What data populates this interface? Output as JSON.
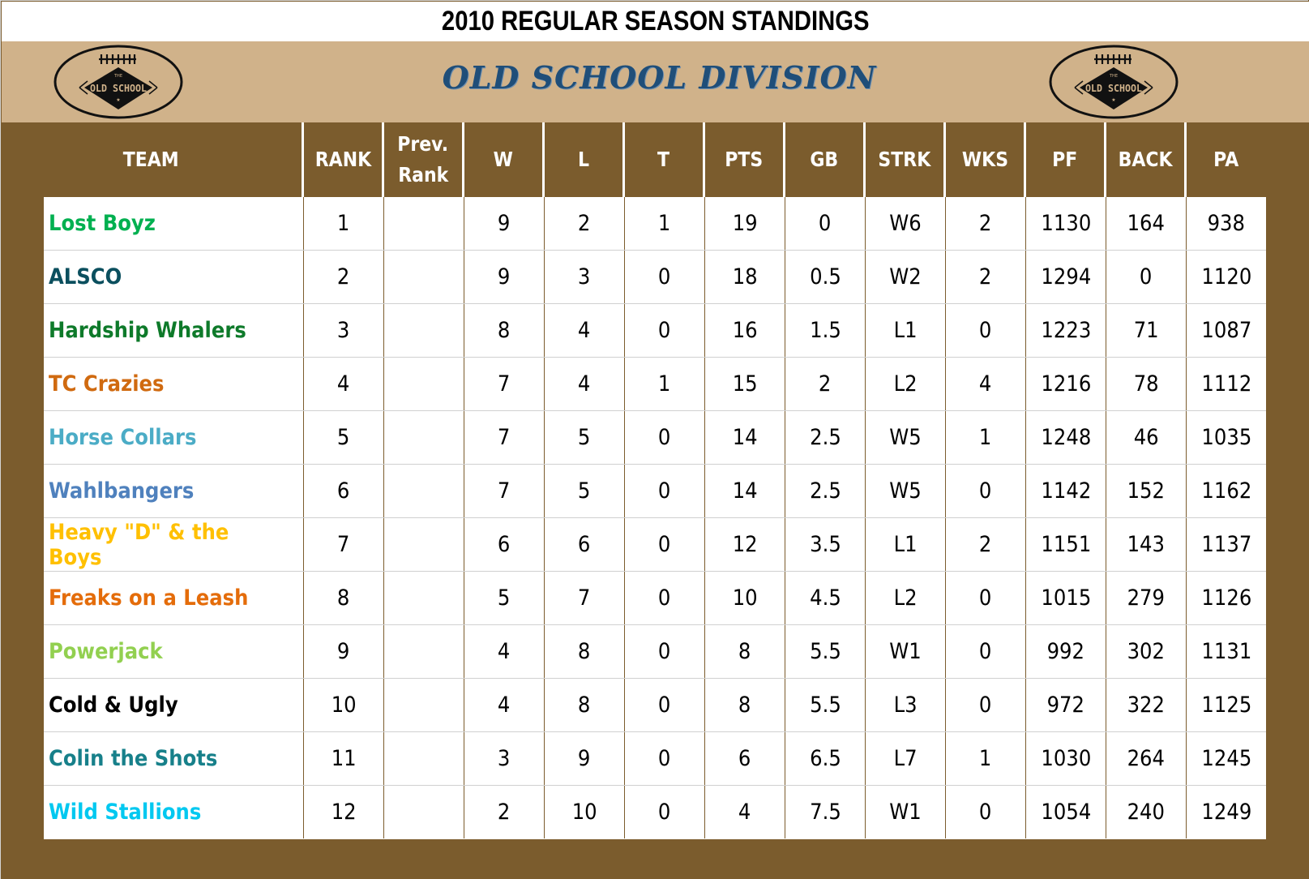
{
  "title": "2010 REGULAR SEASON STANDINGS",
  "division": {
    "name": "OLD SCHOOL DIVISION",
    "logo_text_top": "THE",
    "logo_text_main": "OLD SCHOOL"
  },
  "colors": {
    "brown": "#7B5C2D",
    "tan": "#D0B28A",
    "division_title": "#1F4E79"
  },
  "columns": {
    "team": "TEAM",
    "rank": "RANK",
    "prev_rank_line1": "Prev.",
    "prev_rank_line2": "Rank",
    "w": "W",
    "l": "L",
    "t": "T",
    "pts": "PTS",
    "gb": "GB",
    "strk": "STRK",
    "wks": "WKS",
    "pf": "PF",
    "back": "BACK",
    "pa": "PA"
  },
  "rows": [
    {
      "team": "Lost Boyz",
      "color": "#00B050",
      "rank": "1",
      "prev_rank": "",
      "w": "9",
      "l": "2",
      "t": "1",
      "pts": "19",
      "gb": "0",
      "strk": "W6",
      "wks": "2",
      "pf": "1130",
      "back": "164",
      "pa": "938"
    },
    {
      "team": "ALSCO",
      "color": "#0B4F5E",
      "rank": "2",
      "prev_rank": "",
      "w": "9",
      "l": "3",
      "t": "0",
      "pts": "18",
      "gb": "0.5",
      "strk": "W2",
      "wks": "2",
      "pf": "1294",
      "back": "0",
      "pa": "1120"
    },
    {
      "team": "Hardship Whalers",
      "color": "#0E7A2A",
      "rank": "3",
      "prev_rank": "",
      "w": "8",
      "l": "4",
      "t": "0",
      "pts": "16",
      "gb": "1.5",
      "strk": "L1",
      "wks": "0",
      "pf": "1223",
      "back": "71",
      "pa": "1087"
    },
    {
      "team": "TC Crazies",
      "color": "#D06A10",
      "rank": "4",
      "prev_rank": "",
      "w": "7",
      "l": "4",
      "t": "1",
      "pts": "15",
      "gb": "2",
      "strk": "L2",
      "wks": "4",
      "pf": "1216",
      "back": "78",
      "pa": "1112"
    },
    {
      "team": "Horse Collars",
      "color": "#4BACC6",
      "rank": "5",
      "prev_rank": "",
      "w": "7",
      "l": "5",
      "t": "0",
      "pts": "14",
      "gb": "2.5",
      "strk": "W5",
      "wks": "1",
      "pf": "1248",
      "back": "46",
      "pa": "1035"
    },
    {
      "team": "Wahlbangers",
      "color": "#4F81BD",
      "rank": "6",
      "prev_rank": "",
      "w": "7",
      "l": "5",
      "t": "0",
      "pts": "14",
      "gb": "2.5",
      "strk": "W5",
      "wks": "0",
      "pf": "1142",
      "back": "152",
      "pa": "1162"
    },
    {
      "team": "Heavy \"D\" & the Boys",
      "color": "#FFC000",
      "rank": "7",
      "prev_rank": "",
      "w": "6",
      "l": "6",
      "t": "0",
      "pts": "12",
      "gb": "3.5",
      "strk": "L1",
      "wks": "2",
      "pf": "1151",
      "back": "143",
      "pa": "1137"
    },
    {
      "team": "Freaks on a Leash",
      "color": "#E46C0A",
      "rank": "8",
      "prev_rank": "",
      "w": "5",
      "l": "7",
      "t": "0",
      "pts": "10",
      "gb": "4.5",
      "strk": "L2",
      "wks": "0",
      "pf": "1015",
      "back": "279",
      "pa": "1126"
    },
    {
      "team": "Powerjack",
      "color": "#92D050",
      "rank": "9",
      "prev_rank": "",
      "w": "4",
      "l": "8",
      "t": "0",
      "pts": "8",
      "gb": "5.5",
      "strk": "W1",
      "wks": "0",
      "pf": "992",
      "back": "302",
      "pa": "1131"
    },
    {
      "team": "Cold & Ugly",
      "color": "#000000",
      "rank": "10",
      "prev_rank": "",
      "w": "4",
      "l": "8",
      "t": "0",
      "pts": "8",
      "gb": "5.5",
      "strk": "L3",
      "wks": "0",
      "pf": "972",
      "back": "322",
      "pa": "1125"
    },
    {
      "team": "Colin the Shots",
      "color": "#17808A",
      "rank": "11",
      "prev_rank": "",
      "w": "3",
      "l": "9",
      "t": "0",
      "pts": "6",
      "gb": "6.5",
      "strk": "L7",
      "wks": "1",
      "pf": "1030",
      "back": "264",
      "pa": "1245"
    },
    {
      "team": "Wild Stallions",
      "color": "#00C8F0",
      "rank": "12",
      "prev_rank": "",
      "w": "2",
      "l": "10",
      "t": "0",
      "pts": "4",
      "gb": "7.5",
      "strk": "W1",
      "wks": "0",
      "pf": "1054",
      "back": "240",
      "pa": "1249"
    }
  ]
}
